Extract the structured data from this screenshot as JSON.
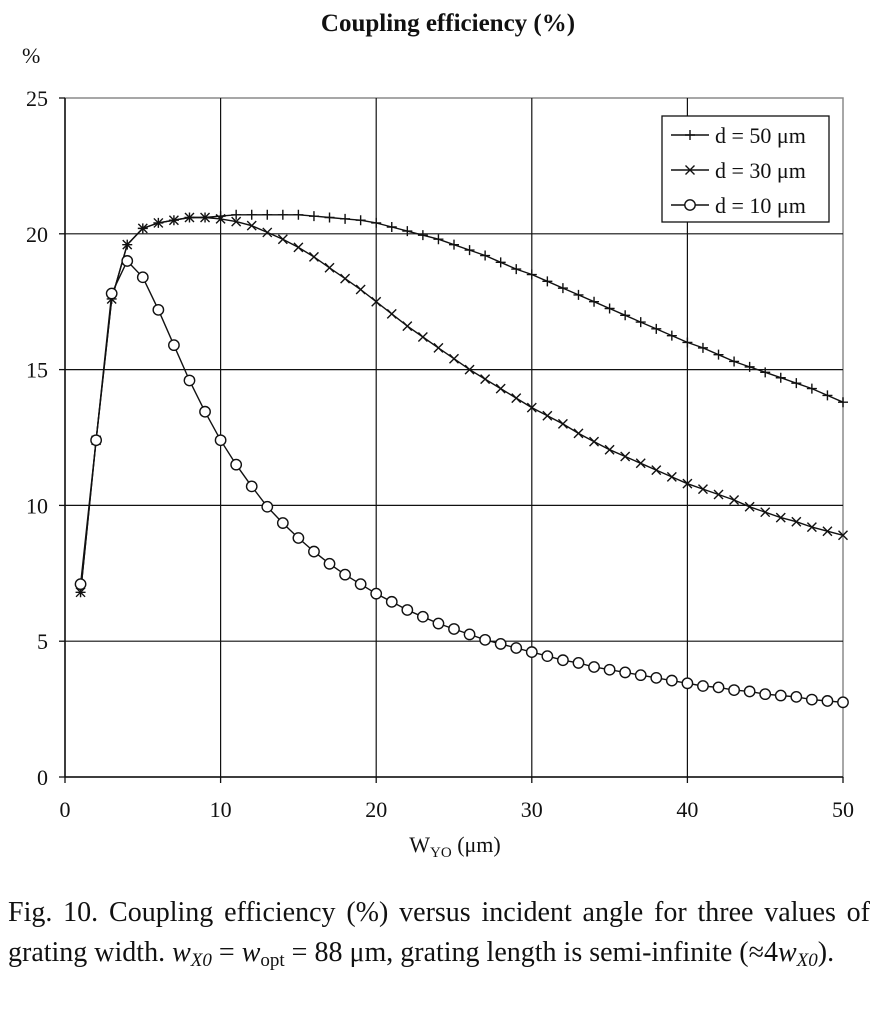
{
  "chart_data": {
    "type": "line",
    "title": "Coupling efficiency (%)",
    "ylabel": "%",
    "xlabel": "W",
    "xlabel_sub": "YO",
    "xlabel_unit": " (μm)",
    "xlim": [
      0,
      50
    ],
    "ylim": [
      0,
      25
    ],
    "x_ticks": [
      0,
      10,
      20,
      30,
      40,
      50
    ],
    "y_ticks": [
      0,
      5,
      10,
      15,
      20,
      25
    ],
    "grid": true,
    "legend_position": "top-right",
    "x": [
      1,
      2,
      3,
      4,
      5,
      6,
      7,
      8,
      9,
      10,
      11,
      12,
      13,
      14,
      15,
      16,
      17,
      18,
      19,
      20,
      21,
      22,
      23,
      24,
      25,
      26,
      27,
      28,
      29,
      30,
      31,
      32,
      33,
      34,
      35,
      36,
      37,
      38,
      39,
      40,
      41,
      42,
      43,
      44,
      45,
      46,
      47,
      48,
      49,
      50
    ],
    "series": [
      {
        "name": "d = 50 μm",
        "marker": "plus",
        "values": [
          6.8,
          12.4,
          17.6,
          19.6,
          20.2,
          20.4,
          20.5,
          20.6,
          20.6,
          20.65,
          20.7,
          20.7,
          20.7,
          20.7,
          20.7,
          20.65,
          20.6,
          20.55,
          20.5,
          20.4,
          20.25,
          20.1,
          19.95,
          19.8,
          19.6,
          19.4,
          19.2,
          18.95,
          18.7,
          18.5,
          18.25,
          18.0,
          17.75,
          17.5,
          17.25,
          17.0,
          16.75,
          16.5,
          16.25,
          16.0,
          15.8,
          15.55,
          15.3,
          15.1,
          14.9,
          14.7,
          14.5,
          14.3,
          14.05,
          13.8
        ]
      },
      {
        "name": "d = 30 μm",
        "marker": "x",
        "values": [
          6.8,
          12.4,
          17.6,
          19.6,
          20.2,
          20.4,
          20.5,
          20.6,
          20.6,
          20.55,
          20.45,
          20.3,
          20.05,
          19.8,
          19.5,
          19.15,
          18.75,
          18.35,
          17.95,
          17.5,
          17.05,
          16.6,
          16.2,
          15.8,
          15.4,
          15.0,
          14.65,
          14.3,
          13.95,
          13.6,
          13.3,
          13.0,
          12.65,
          12.35,
          12.05,
          11.8,
          11.55,
          11.3,
          11.05,
          10.8,
          10.6,
          10.4,
          10.2,
          9.95,
          9.75,
          9.55,
          9.4,
          9.2,
          9.05,
          8.9
        ]
      },
      {
        "name": "d = 10 μm",
        "marker": "circle",
        "values": [
          7.1,
          12.4,
          17.8,
          19.0,
          18.4,
          17.2,
          15.9,
          14.6,
          13.45,
          12.4,
          11.5,
          10.7,
          9.95,
          9.35,
          8.8,
          8.3,
          7.85,
          7.45,
          7.1,
          6.75,
          6.45,
          6.15,
          5.9,
          5.65,
          5.45,
          5.25,
          5.05,
          4.9,
          4.75,
          4.6,
          4.45,
          4.3,
          4.2,
          4.05,
          3.95,
          3.85,
          3.75,
          3.65,
          3.55,
          3.45,
          3.35,
          3.3,
          3.2,
          3.15,
          3.05,
          3.0,
          2.95,
          2.85,
          2.8,
          2.75
        ]
      }
    ]
  },
  "caption": {
    "prefix": "Fig. 10. Coupling efficiency (%) versus incident angle for three values of grating width. ",
    "w_x0": "w",
    "w_x0_sub": "X0",
    "equals": " = ",
    "w_opt": "w",
    "w_opt_sub": "opt",
    "value": " = 88 μm, grating length is semi-infinite (≈4",
    "w_end": "w",
    "w_end_sub": "X0",
    "suffix": ")."
  }
}
